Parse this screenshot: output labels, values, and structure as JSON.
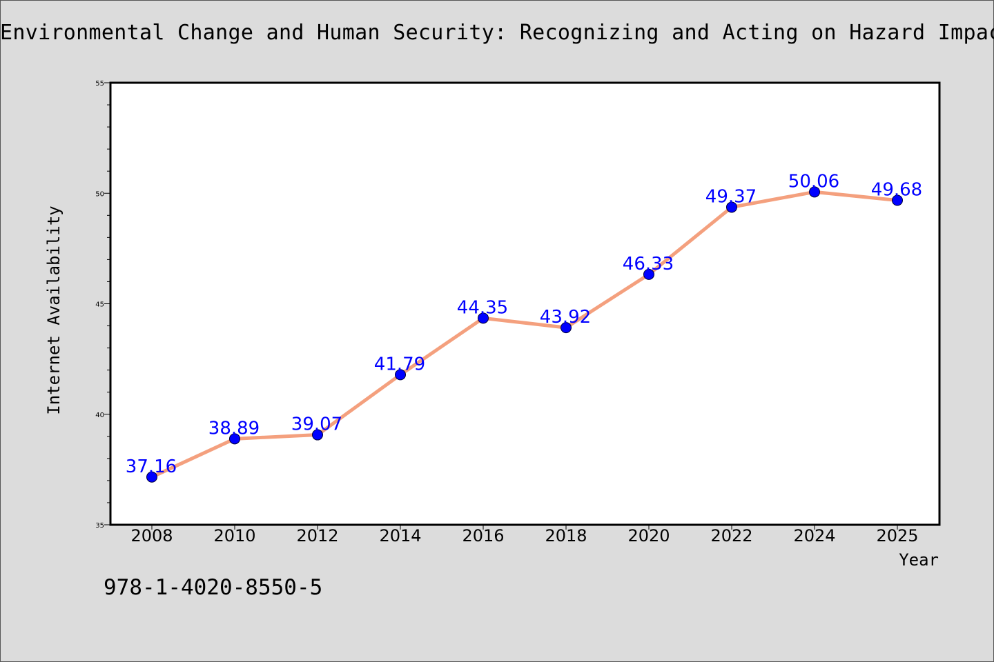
{
  "chart_data": {
    "type": "line",
    "title": "Environmental Change and Human Security: Recognizing and Acting on Hazard Impacts",
    "xlabel": "Year",
    "ylabel": "Internet Availability",
    "categories": [
      "2008",
      "2010",
      "2012",
      "2014",
      "2016",
      "2018",
      "2020",
      "2022",
      "2024",
      "2025"
    ],
    "series": [
      {
        "values": [
          37.16,
          38.89,
          39.07,
          41.79,
          44.35,
          43.92,
          46.33,
          49.37,
          50.06,
          49.68
        ],
        "labels": [
          "37.16",
          "38.89",
          "39.07",
          "41.79",
          "44.35",
          "43.92",
          "46.33",
          "49.37",
          "50.06",
          "49.68"
        ]
      }
    ],
    "ylim": [
      35,
      55
    ],
    "yticks": [
      "35",
      "40",
      "45",
      "50",
      "55"
    ],
    "grid": false,
    "line_color": "#f4a07e",
    "marker_color": "#0000ff",
    "label_color": "#0000ff"
  },
  "footer": {
    "isbn": "978-1-4020-8550-5"
  }
}
